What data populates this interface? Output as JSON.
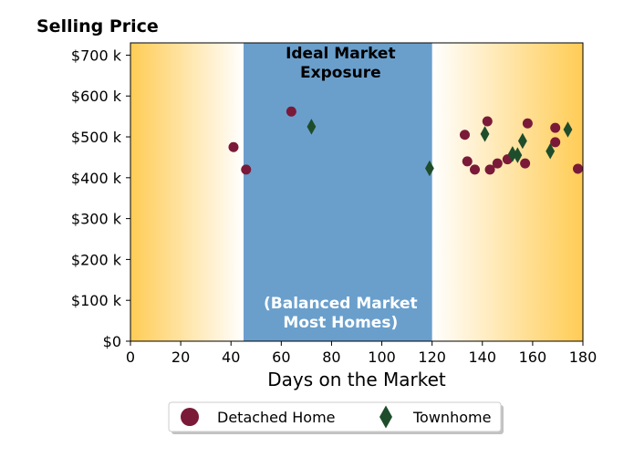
{
  "chart_data": {
    "type": "scatter",
    "title": "Selling Price",
    "xlabel": "Days on the Market",
    "ylabel": "",
    "xlim": [
      0,
      180
    ],
    "ylim": [
      0,
      730000
    ],
    "x_ticks": [
      {
        "value": 0,
        "label": "0"
      },
      {
        "value": 20,
        "label": "20"
      },
      {
        "value": 40,
        "label": "40"
      },
      {
        "value": 60,
        "label": "60"
      },
      {
        "value": 80,
        "label": "80"
      },
      {
        "value": 100,
        "label": "100"
      },
      {
        "value": 120,
        "label": "120"
      },
      {
        "value": 140,
        "label": "140"
      },
      {
        "value": 160,
        "label": "160"
      },
      {
        "value": 180,
        "label": "180"
      }
    ],
    "y_ticks": [
      {
        "value": 0,
        "label": "$0"
      },
      {
        "value": 100000,
        "label": "$100 k"
      },
      {
        "value": 200000,
        "label": "$200 k"
      },
      {
        "value": 300000,
        "label": "$300 k"
      },
      {
        "value": 400000,
        "label": "$400 k"
      },
      {
        "value": 500000,
        "label": "$500 k"
      },
      {
        "value": 600000,
        "label": "$600 k"
      },
      {
        "value": 700000,
        "label": "$700 k"
      }
    ],
    "grid": false,
    "legend_position": "bottom-center",
    "ideal_range": {
      "x_start": 45,
      "x_end": 120,
      "color": "#6a9fcc",
      "label_top_line1": "Ideal Market",
      "label_top_line2": "Exposure",
      "label_bottom_line1": "(Balanced Market",
      "label_bottom_line2": "Most Homes)"
    },
    "shade_color": "#ffcc55",
    "series": [
      {
        "name": "Detached Home",
        "marker": "circle",
        "color": "#7a1a38",
        "points": [
          [
            41,
            475000
          ],
          [
            46,
            420000
          ],
          [
            64,
            562000
          ],
          [
            133,
            505000
          ],
          [
            134,
            440000
          ],
          [
            137,
            420000
          ],
          [
            142,
            538000
          ],
          [
            143,
            420000
          ],
          [
            146,
            435000
          ],
          [
            150,
            445000
          ],
          [
            157,
            435000
          ],
          [
            158,
            533000
          ],
          [
            169,
            522000
          ],
          [
            169,
            487000
          ],
          [
            178,
            422000
          ]
        ]
      },
      {
        "name": "Townhome",
        "marker": "diamond",
        "color": "#1e4d2b",
        "points": [
          [
            72,
            525000
          ],
          [
            119,
            423000
          ],
          [
            141,
            507000
          ],
          [
            152,
            458000
          ],
          [
            154,
            455000
          ],
          [
            156,
            490000
          ],
          [
            167,
            465000
          ],
          [
            174,
            518000
          ]
        ]
      }
    ]
  }
}
